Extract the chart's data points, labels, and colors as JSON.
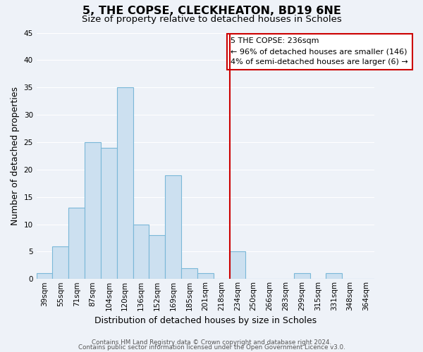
{
  "title": "5, THE COPSE, CLECKHEATON, BD19 6NE",
  "subtitle": "Size of property relative to detached houses in Scholes",
  "xlabel": "Distribution of detached houses by size in Scholes",
  "ylabel": "Number of detached properties",
  "footer_line1": "Contains HM Land Registry data © Crown copyright and database right 2024.",
  "footer_line2": "Contains public sector information licensed under the Open Government Licence v3.0.",
  "bin_labels": [
    "39sqm",
    "55sqm",
    "71sqm",
    "87sqm",
    "104sqm",
    "120sqm",
    "136sqm",
    "152sqm",
    "169sqm",
    "185sqm",
    "201sqm",
    "218sqm",
    "234sqm",
    "250sqm",
    "266sqm",
    "283sqm",
    "299sqm",
    "315sqm",
    "331sqm",
    "348sqm",
    "364sqm"
  ],
  "bar_values": [
    1,
    6,
    13,
    25,
    24,
    35,
    10,
    8,
    19,
    2,
    1,
    0,
    5,
    0,
    0,
    0,
    1,
    0,
    1,
    0,
    0
  ],
  "bar_color": "#cce0f0",
  "bar_edge_color": "#7ab8d8",
  "vline_index": 12,
  "vline_color": "#cc0000",
  "ylim": [
    0,
    45
  ],
  "yticks": [
    0,
    5,
    10,
    15,
    20,
    25,
    30,
    35,
    40,
    45
  ],
  "legend_title": "5 THE COPSE: 236sqm",
  "legend_line1": "← 96% of detached houses are smaller (146)",
  "legend_line2": "4% of semi-detached houses are larger (6) →",
  "legend_box_color": "#cc0000",
  "background_color": "#eef2f8",
  "grid_color": "#ffffff",
  "title_fontsize": 11.5,
  "subtitle_fontsize": 9.5,
  "axis_label_fontsize": 9,
  "tick_fontsize": 7.5,
  "legend_fontsize": 8.0
}
